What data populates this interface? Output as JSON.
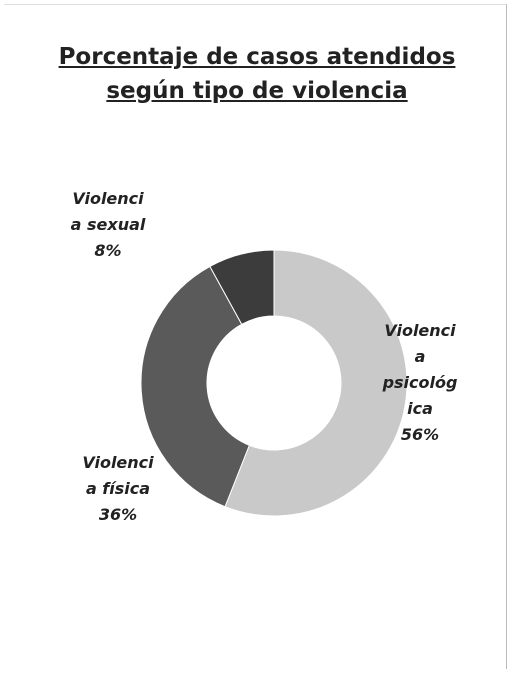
{
  "chart_data": {
    "type": "donut",
    "title": [
      "Porcentaje de casos atendidos",
      "según tipo de violencia"
    ],
    "categories": [
      "Violencia psicológica",
      "Violencia física",
      "Violencia sexual"
    ],
    "values": [
      56,
      36,
      8
    ],
    "value_labels": [
      "56%",
      "36%",
      "8%"
    ],
    "colors": [
      "#c9c9c9",
      "#5a5a5a",
      "#3c3c3c"
    ]
  }
}
